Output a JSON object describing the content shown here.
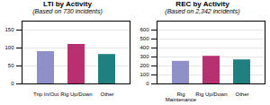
{
  "chart_data": [
    {
      "type": "bar",
      "title": "LTI by Activity",
      "subtitle": "(Based on 730 incidents)",
      "categories": [
        "Trip In/Out",
        "Rig Up/Down",
        "Other"
      ],
      "values": [
        90,
        110,
        82
      ],
      "colors": [
        "#9090c8",
        "#b83070",
        "#208080"
      ],
      "ylim": [
        0,
        175
      ],
      "yticks": [
        0,
        50,
        100,
        150
      ],
      "grid": true
    },
    {
      "type": "bar",
      "title": "REC by Activity",
      "subtitle": "(Based on 2,342 incidents)",
      "categories": [
        "Rig\nMaintenance",
        "Rig Up/Down",
        "Other"
      ],
      "values": [
        252,
        308,
        268
      ],
      "colors": [
        "#9090c8",
        "#b83070",
        "#208080"
      ],
      "ylim": [
        0,
        700
      ],
      "yticks": [
        0,
        100,
        200,
        300,
        400,
        500,
        600
      ],
      "grid": true
    }
  ]
}
